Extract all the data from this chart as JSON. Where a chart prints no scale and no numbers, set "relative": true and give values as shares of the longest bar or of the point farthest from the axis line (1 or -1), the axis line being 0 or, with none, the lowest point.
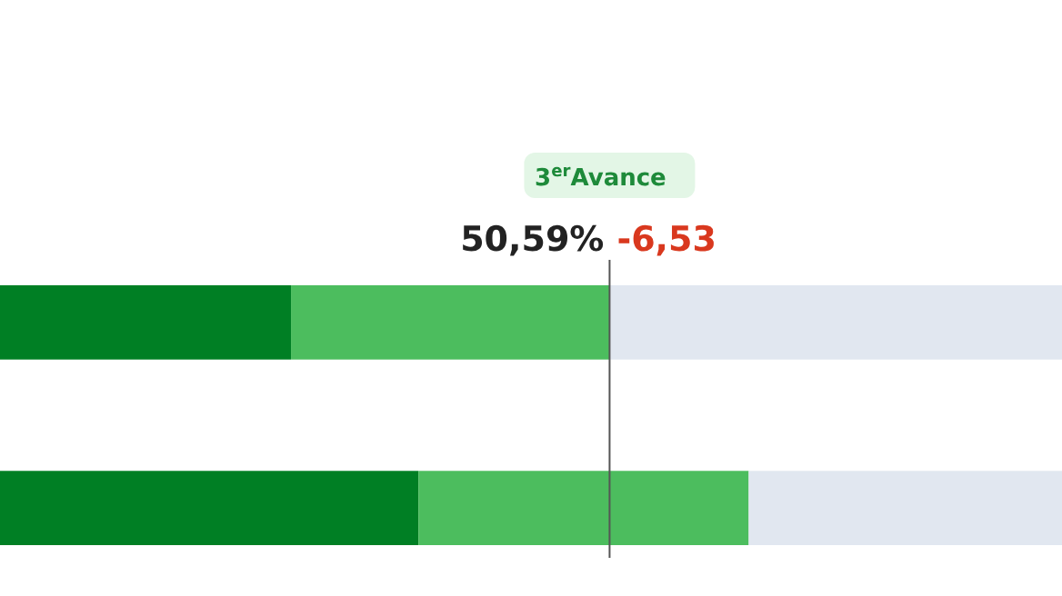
{
  "chart_data": {
    "type": "bar",
    "orientation": "horizontal",
    "stacked": true,
    "relative": true,
    "categories": [
      null,
      null
    ],
    "series": [
      {
        "color": "#007f24",
        "values": [
          0.274,
          0.394
        ]
      },
      {
        "color": "#4cbd5e",
        "values": [
          0.3,
          0.311
        ]
      },
      {
        "color": "#e1e7f0",
        "values": [
          0.426,
          0.295
        ]
      }
    ],
    "ref_lines": [
      {
        "axis": "x",
        "value": 0.574,
        "color": "#555555"
      }
    ],
    "annotations": [
      "3$^{er}$Avance",
      "50,59%",
      "-6,53"
    ]
  }
}
